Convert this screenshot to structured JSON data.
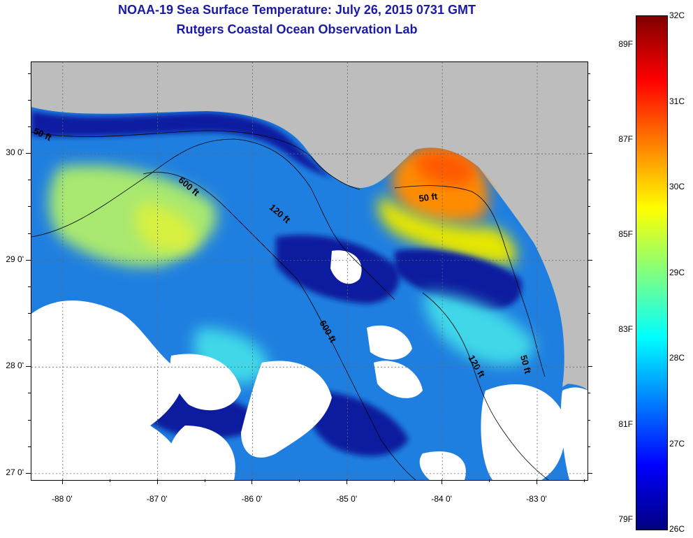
{
  "title_line1": "NOAA-19 Sea Surface Temperature:  July 26, 2015 0731 GMT",
  "title_line2": "Rutgers Coastal Ocean Observation Lab",
  "axes": {
    "lon": {
      "min": -88.33,
      "max": -82.47,
      "ticks": [
        {
          "value": -88,
          "label": "-88 0'"
        },
        {
          "value": -87,
          "label": "-87 0'"
        },
        {
          "value": -86,
          "label": "-86 0'"
        },
        {
          "value": -85,
          "label": "-85 0'"
        },
        {
          "value": -84,
          "label": "-84 0'"
        },
        {
          "value": -83,
          "label": "-83 0'"
        }
      ]
    },
    "lat": {
      "min": 26.94,
      "max": 30.86,
      "ticks": [
        {
          "value": 30,
          "label": "30 0'"
        },
        {
          "value": 29,
          "label": "29 0'"
        },
        {
          "value": 28,
          "label": "28 0'"
        },
        {
          "value": 27,
          "label": "27 0'"
        }
      ]
    }
  },
  "contours": [
    {
      "label": "50 ft"
    },
    {
      "label": "120 ft"
    },
    {
      "label": "600 ft"
    },
    {
      "label": "50 ft"
    },
    {
      "label": "600 ft"
    },
    {
      "label": "120 ft"
    },
    {
      "label": "50 ft"
    }
  ],
  "colorbar": {
    "celsius_labels": [
      "32C",
      "31C",
      "30C",
      "29C",
      "28C",
      "27C",
      "26C"
    ],
    "fahrenheit_labels": [
      "89F",
      "87F",
      "85F",
      "83F",
      "81F",
      "79F"
    ],
    "colors": [
      "#000080",
      "#0000ff",
      "#0080ff",
      "#00ffff",
      "#80ff80",
      "#ffff00",
      "#ff8000",
      "#ff0000",
      "#800000"
    ]
  },
  "legend": {
    "land_color": "#bdbdbd",
    "cloud_color": "#ffffff"
  }
}
